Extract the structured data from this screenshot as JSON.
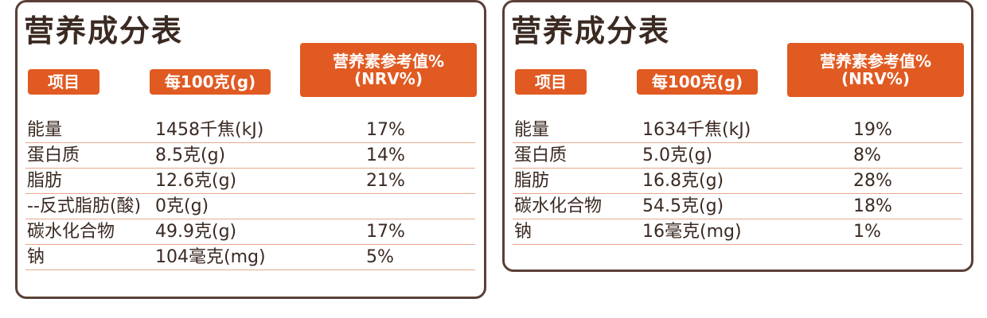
{
  "panels": [
    {
      "title": "营养成分表",
      "headers": {
        "item": "项目",
        "per100": "每100克(g)",
        "nrv_line1": "营养素参考值%",
        "nrv_line2": "(NRV%)"
      },
      "rows": [
        {
          "name": "能量",
          "value": "1458千焦(kJ)",
          "nrv": "17%"
        },
        {
          "name": "蛋白质",
          "value": "8.5克(g)",
          "nrv": "14%"
        },
        {
          "name": "脂肪",
          "value": "12.6克(g)",
          "nrv": "21%"
        },
        {
          "name": "--反式脂肪(酸)",
          "value": "0克(g)",
          "nrv": ""
        },
        {
          "name": "碳水化合物",
          "value": "49.9克(g)",
          "nrv": "17%"
        },
        {
          "name": "钠",
          "value": "104毫克(mg)",
          "nrv": "5%"
        }
      ]
    },
    {
      "title": "营养成分表",
      "headers": {
        "item": "项目",
        "per100": "每100克(g)",
        "nrv_line1": "营养素参考值%",
        "nrv_line2": "(NRV%)"
      },
      "rows": [
        {
          "name": "能量",
          "value": "1634千焦(kJ)",
          "nrv": "19%"
        },
        {
          "name": "蛋白质",
          "value": "5.0克(g)",
          "nrv": "8%"
        },
        {
          "name": "脂肪",
          "value": "16.8克(g)",
          "nrv": "28%"
        },
        {
          "name": "碳水化合物",
          "value": "54.5克(g)",
          "nrv": "18%"
        },
        {
          "name": "钠",
          "value": "16毫克(mg)",
          "nrv": "1%"
        }
      ]
    }
  ],
  "colors": {
    "accent": "#e05a22",
    "border": "#5a3f36",
    "row_line": "#e8a98c",
    "text": "#3a2a22"
  }
}
